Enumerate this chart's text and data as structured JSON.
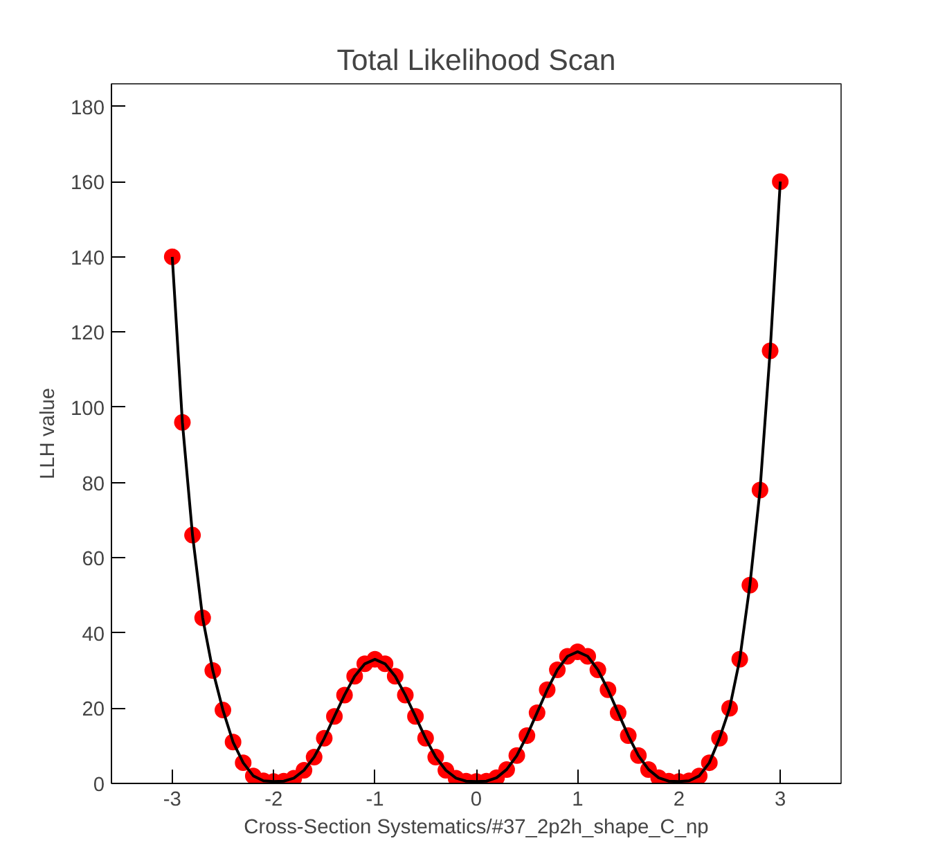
{
  "chart_data": {
    "type": "line",
    "title": "Total Likelihood Scan",
    "xlabel": "Cross-Section Systematics/#37_2p2h_shape_C_np",
    "ylabel": "LLH value",
    "x": [
      -3.0,
      -2.9,
      -2.8,
      -2.7,
      -2.6,
      -2.5,
      -2.4,
      -2.3,
      -2.2,
      -2.1,
      -2.0,
      -1.9,
      -1.8,
      -1.7,
      -1.6,
      -1.5,
      -1.4,
      -1.3,
      -1.2,
      -1.1,
      -1.0,
      -0.9,
      -0.8,
      -0.7,
      -0.6,
      -0.5,
      -0.4,
      -0.3,
      -0.2,
      -0.1,
      0.0,
      0.1,
      0.2,
      0.3,
      0.4,
      0.5,
      0.6,
      0.7,
      0.8,
      0.9,
      1.0,
      1.1,
      1.2,
      1.3,
      1.4,
      1.5,
      1.6,
      1.7,
      1.8,
      1.9,
      2.0,
      2.1,
      2.2,
      2.3,
      2.4,
      2.5,
      2.6,
      2.7,
      2.8,
      2.9,
      3.0
    ],
    "series": [
      {
        "type": "scatter",
        "marker": "circle",
        "color": "#ff0000",
        "values": [
          140,
          96,
          66,
          44,
          30,
          19.5,
          11,
          5.5,
          2,
          0.7,
          0.5,
          0.6,
          1.4,
          3.5,
          7,
          12,
          17.8,
          23.5,
          28.5,
          31.8,
          33,
          31.8,
          28.5,
          23.5,
          17.8,
          12,
          7,
          3.5,
          1.4,
          0.6,
          0.5,
          0.6,
          1.5,
          3.7,
          7.4,
          12.7,
          18.8,
          24.9,
          30.2,
          33.8,
          35,
          33.8,
          30.2,
          24.9,
          18.8,
          12.7,
          7.4,
          3.7,
          1.5,
          0.6,
          0.5,
          0.7,
          2,
          5.5,
          12,
          20,
          33,
          52.7,
          78,
          115,
          160
        ]
      },
      {
        "marker": "none",
        "line_style": "solid",
        "color": "#000000",
        "values": [
          140,
          96,
          66,
          44,
          30,
          19.5,
          11,
          5.5,
          2,
          0.7,
          0.5,
          0.6,
          1.4,
          3.5,
          7,
          12,
          17.8,
          23.5,
          28.5,
          31.8,
          33,
          31.8,
          28.5,
          23.5,
          17.8,
          12,
          7,
          3.5,
          1.4,
          0.6,
          0.5,
          0.6,
          1.5,
          3.7,
          7.4,
          12.7,
          18.8,
          24.9,
          30.2,
          33.8,
          35,
          33.8,
          30.2,
          24.9,
          18.8,
          12.7,
          7.4,
          3.7,
          1.5,
          0.6,
          0.5,
          0.7,
          2,
          5.5,
          12,
          20,
          33,
          52.7,
          78,
          115,
          160
        ]
      }
    ],
    "xlim": [
      -3.6,
      3.6
    ],
    "ylim": [
      0,
      186
    ],
    "xticks": [
      -3,
      -2,
      -1,
      0,
      1,
      2,
      3
    ],
    "yticks": [
      0,
      20,
      40,
      60,
      80,
      100,
      120,
      140,
      160,
      180
    ],
    "grid": false
  }
}
